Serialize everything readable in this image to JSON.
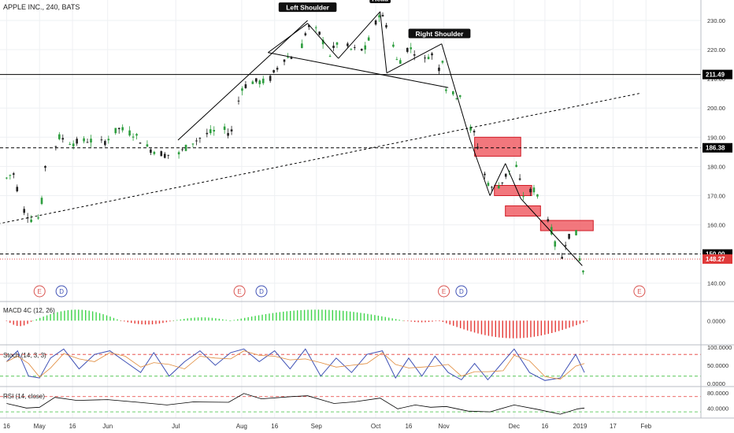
{
  "header": {
    "symbol_label": "APPLE INC., 240, BATS"
  },
  "colors": {
    "up": "#2e9e3f",
    "down": "#222222",
    "trend": "#000000",
    "zone_fill": "#f05f66",
    "zone_stroke": "#d01a24",
    "price_line": "#e03a3a",
    "macd_pos": "#3fd44a",
    "macd_neg": "#e53935",
    "stoch_k": "#3f51b5",
    "osc_line": "#000000",
    "overbought": "#e53935",
    "oversold": "#3fbf3f"
  },
  "chart_data": [
    {
      "type": "candlestick",
      "title": "APPLE INC., 240, BATS",
      "ylim": [
        134,
        237
      ],
      "y_ticks": [
        140,
        150,
        160,
        170,
        180,
        190,
        200,
        210,
        220,
        230
      ],
      "y_tick_labels": [
        "140.00",
        "150.00",
        "160.00",
        "170.00",
        "180.00",
        "190.00",
        "200.00",
        "210.00",
        "220.00",
        "230.00"
      ],
      "x_ticks": [
        "16",
        "May",
        "16",
        "Jun",
        "Jul",
        "Aug",
        "16",
        "Sep",
        "Oct",
        "16",
        "Nov",
        "Dec",
        "16",
        "2019",
        "17",
        "Feb"
      ],
      "price_path": [
        [
          "2018-04-16",
          176
        ],
        [
          "2018-04-19",
          178
        ],
        [
          "2018-04-23",
          166
        ],
        [
          "2018-04-27",
          162
        ],
        [
          "2018-04-30",
          161
        ],
        [
          "2018-05-02",
          168
        ],
        [
          "2018-05-04",
          183
        ],
        [
          "2018-05-07",
          185
        ],
        [
          "2018-05-10",
          190
        ],
        [
          "2018-05-16",
          188
        ],
        [
          "2018-05-23",
          189
        ],
        [
          "2018-05-30",
          188
        ],
        [
          "2018-06-06",
          193
        ],
        [
          "2018-06-13",
          191
        ],
        [
          "2018-06-20",
          186
        ],
        [
          "2018-06-27",
          184
        ],
        [
          "2018-07-03",
          184
        ],
        [
          "2018-07-09",
          188
        ],
        [
          "2018-07-16",
          191
        ],
        [
          "2018-07-23",
          193
        ],
        [
          "2018-07-27",
          191
        ],
        [
          "2018-08-01",
          207
        ],
        [
          "2018-08-06",
          209
        ],
        [
          "2018-08-13",
          209
        ],
        [
          "2018-08-20",
          217
        ],
        [
          "2018-08-27",
          218
        ],
        [
          "2018-08-31",
          228
        ],
        [
          "2018-09-05",
          226
        ],
        [
          "2018-09-10",
          218
        ],
        [
          "2018-09-14",
          223
        ],
        [
          "2018-09-20",
          220
        ],
        [
          "2018-09-26",
          220
        ],
        [
          "2018-10-01",
          229
        ],
        [
          "2018-10-03",
          233
        ],
        [
          "2018-10-08",
          225
        ],
        [
          "2018-10-11",
          215
        ],
        [
          "2018-10-16",
          221
        ],
        [
          "2018-10-19",
          219
        ],
        [
          "2018-10-24",
          216
        ],
        [
          "2018-10-26",
          220
        ],
        [
          "2018-10-29",
          212
        ],
        [
          "2018-11-01",
          218
        ],
        [
          "2018-11-02",
          207
        ],
        [
          "2018-11-06",
          204
        ],
        [
          "2018-11-09",
          205
        ],
        [
          "2018-11-12",
          194
        ],
        [
          "2018-11-15",
          191
        ],
        [
          "2018-11-20",
          176
        ],
        [
          "2018-11-23",
          172
        ],
        [
          "2018-11-27",
          174
        ],
        [
          "2018-11-30",
          178
        ],
        [
          "2018-12-04",
          180
        ],
        [
          "2018-12-07",
          170
        ],
        [
          "2018-12-12",
          172
        ],
        [
          "2018-12-17",
          166
        ],
        [
          "2018-12-20",
          158
        ],
        [
          "2018-12-24",
          146
        ],
        [
          "2018-12-27",
          156
        ],
        [
          "2018-12-31",
          158
        ],
        [
          "2019-01-03",
          142
        ],
        [
          "2019-01-04",
          148
        ]
      ],
      "last_price": 148.27,
      "price_labels": [
        {
          "value": 211.49,
          "text": "211.49",
          "style": "solid-line"
        },
        {
          "value": 186.38,
          "text": "186.38",
          "style": "dashed-line"
        },
        {
          "value": 150.0,
          "text": "150.00",
          "style": "dashed-line"
        },
        {
          "value": 148.27,
          "text": "148.27",
          "style": "last-price"
        }
      ],
      "annotations": [
        {
          "text": "Left Shoulder",
          "x": "2018-08-31",
          "y": 234
        },
        {
          "text": "Head",
          "x": "2018-10-03",
          "y": 237
        },
        {
          "text": "Right Shoulder",
          "x": "2018-10-30",
          "y": 225
        }
      ],
      "trend_lines": [
        {
          "style": "solid",
          "from": [
            "2018-07-03",
            189
          ],
          "to": [
            "2018-08-31",
            230
          ]
        },
        {
          "style": "solid",
          "from": [
            "2018-08-13",
            219
          ],
          "to": [
            "2018-08-31",
            229
          ]
        },
        {
          "style": "solid",
          "from": [
            "2018-08-31",
            229
          ],
          "to": [
            "2018-09-14",
            217
          ]
        },
        {
          "style": "solid",
          "from": [
            "2018-09-14",
            217
          ],
          "to": [
            "2018-10-03",
            233
          ]
        },
        {
          "style": "solid",
          "from": [
            "2018-10-03",
            233
          ],
          "to": [
            "2018-10-06",
            212
          ]
        },
        {
          "style": "solid",
          "from": [
            "2018-10-06",
            212
          ],
          "to": [
            "2018-10-31",
            222
          ]
        },
        {
          "style": "solid",
          "from": [
            "2018-10-31",
            222
          ],
          "to": [
            "2018-11-13",
            189
          ]
        },
        {
          "style": "solid",
          "from": [
            "2018-08-13",
            219
          ],
          "to": [
            "2018-11-03",
            207
          ]
        },
        {
          "style": "solid",
          "from": [
            "2018-11-13",
            189
          ],
          "to": [
            "2018-11-22",
            170
          ]
        },
        {
          "style": "solid",
          "from": [
            "2018-11-22",
            170
          ],
          "to": [
            "2018-11-29",
            181
          ]
        },
        {
          "style": "solid",
          "from": [
            "2018-11-29",
            181
          ],
          "to": [
            "2018-12-06",
            169
          ]
        },
        {
          "style": "solid",
          "from": [
            "2018-12-06",
            169
          ],
          "to": [
            "2019-01-03",
            146
          ]
        },
        {
          "style": "dashed",
          "from": [
            "2018-04-10",
            160
          ],
          "to": [
            "2019-01-29",
            205
          ]
        }
      ],
      "supply_zones": [
        {
          "x_from": "2018-11-15",
          "x_to": "2018-12-06",
          "y_low": 183.5,
          "y_high": 190
        },
        {
          "x_from": "2018-11-24",
          "x_to": "2018-12-11",
          "y_low": 170,
          "y_high": 173.5
        },
        {
          "x_from": "2018-11-29",
          "x_to": "2018-12-15",
          "y_low": 163,
          "y_high": 166.5
        },
        {
          "x_from": "2018-12-15",
          "x_to": "2019-01-08",
          "y_low": 158,
          "y_high": 161.5
        }
      ],
      "event_markers": [
        {
          "text": "E",
          "x": "2018-05-01"
        },
        {
          "text": "D",
          "x": "2018-05-11"
        },
        {
          "text": "E",
          "x": "2018-07-31"
        },
        {
          "text": "D",
          "x": "2018-08-10"
        },
        {
          "text": "E",
          "x": "2018-11-01"
        },
        {
          "text": "D",
          "x": "2018-11-09"
        },
        {
          "text": "E",
          "x": "2019-01-29"
        }
      ]
    },
    {
      "type": "bar",
      "title": "MACD 4C (12, 26)",
      "y_ticks": [
        "0.0000"
      ],
      "zero_level": 0,
      "segments": [
        {
          "from": "2018-04-16",
          "to": "2018-04-28",
          "sign": -1,
          "peak": 0.5
        },
        {
          "from": "2018-04-28",
          "to": "2018-06-07",
          "sign": 1,
          "peak": 1.0
        },
        {
          "from": "2018-06-07",
          "to": "2018-07-01",
          "sign": -1,
          "peak": 0.35
        },
        {
          "from": "2018-07-01",
          "to": "2018-07-27",
          "sign": 1,
          "peak": 0.3
        },
        {
          "from": "2018-07-27",
          "to": "2018-10-14",
          "sign": 1,
          "peak": 1.0
        },
        {
          "from": "2018-10-14",
          "to": "2018-10-30",
          "sign": -1,
          "peak": 0.15
        },
        {
          "from": "2018-10-30",
          "to": "2019-01-06",
          "sign": -1,
          "peak": 1.6
        }
      ]
    },
    {
      "type": "line",
      "title": "Stoch (14, 3, 3)",
      "ylim": [
        0,
        100
      ],
      "y_ticks": [
        "100.0000",
        "50.0000",
        "0.0000"
      ],
      "levels": [
        80,
        20
      ],
      "series_k": [
        [
          "2018-04-16",
          60
        ],
        [
          "2018-04-21",
          90
        ],
        [
          "2018-04-26",
          20
        ],
        [
          "2018-05-01",
          15
        ],
        [
          "2018-05-06",
          70
        ],
        [
          "2018-05-12",
          95
        ],
        [
          "2018-05-19",
          40
        ],
        [
          "2018-05-26",
          80
        ],
        [
          "2018-06-02",
          90
        ],
        [
          "2018-06-09",
          60
        ],
        [
          "2018-06-16",
          30
        ],
        [
          "2018-06-22",
          85
        ],
        [
          "2018-06-29",
          20
        ],
        [
          "2018-07-06",
          60
        ],
        [
          "2018-07-13",
          90
        ],
        [
          "2018-07-20",
          50
        ],
        [
          "2018-07-27",
          85
        ],
        [
          "2018-08-02",
          95
        ],
        [
          "2018-08-09",
          60
        ],
        [
          "2018-08-16",
          90
        ],
        [
          "2018-08-23",
          40
        ],
        [
          "2018-08-30",
          95
        ],
        [
          "2018-09-06",
          20
        ],
        [
          "2018-09-13",
          70
        ],
        [
          "2018-09-20",
          30
        ],
        [
          "2018-09-27",
          80
        ],
        [
          "2018-10-04",
          90
        ],
        [
          "2018-10-10",
          15
        ],
        [
          "2018-10-16",
          70
        ],
        [
          "2018-10-22",
          20
        ],
        [
          "2018-10-28",
          75
        ],
        [
          "2018-11-03",
          30
        ],
        [
          "2018-11-09",
          10
        ],
        [
          "2018-11-15",
          55
        ],
        [
          "2018-11-21",
          10
        ],
        [
          "2018-11-28",
          60
        ],
        [
          "2018-12-03",
          95
        ],
        [
          "2018-12-10",
          30
        ],
        [
          "2018-12-17",
          8
        ],
        [
          "2018-12-24",
          15
        ],
        [
          "2018-12-31",
          80
        ],
        [
          "2019-01-04",
          30
        ]
      ]
    },
    {
      "type": "line",
      "title": "RSI (14, close)",
      "ylim": [
        20,
        90
      ],
      "y_ticks": [
        "80.0000",
        "40.0000"
      ],
      "levels": [
        70,
        30
      ],
      "series": [
        [
          "2018-04-16",
          52
        ],
        [
          "2018-04-25",
          40
        ],
        [
          "2018-05-01",
          42
        ],
        [
          "2018-05-08",
          68
        ],
        [
          "2018-05-18",
          60
        ],
        [
          "2018-06-01",
          62
        ],
        [
          "2018-06-15",
          55
        ],
        [
          "2018-06-28",
          48
        ],
        [
          "2018-07-10",
          56
        ],
        [
          "2018-07-26",
          55
        ],
        [
          "2018-08-02",
          78
        ],
        [
          "2018-08-10",
          64
        ],
        [
          "2018-08-24",
          70
        ],
        [
          "2018-08-31",
          72
        ],
        [
          "2018-09-12",
          52
        ],
        [
          "2018-09-21",
          56
        ],
        [
          "2018-10-03",
          66
        ],
        [
          "2018-10-11",
          38
        ],
        [
          "2018-10-19",
          48
        ],
        [
          "2018-10-26",
          42
        ],
        [
          "2018-11-02",
          44
        ],
        [
          "2018-11-12",
          32
        ],
        [
          "2018-11-22",
          30
        ],
        [
          "2018-12-03",
          48
        ],
        [
          "2018-12-14",
          36
        ],
        [
          "2018-12-24",
          24
        ],
        [
          "2019-01-01",
          38
        ],
        [
          "2019-01-04",
          40
        ]
      ]
    }
  ]
}
